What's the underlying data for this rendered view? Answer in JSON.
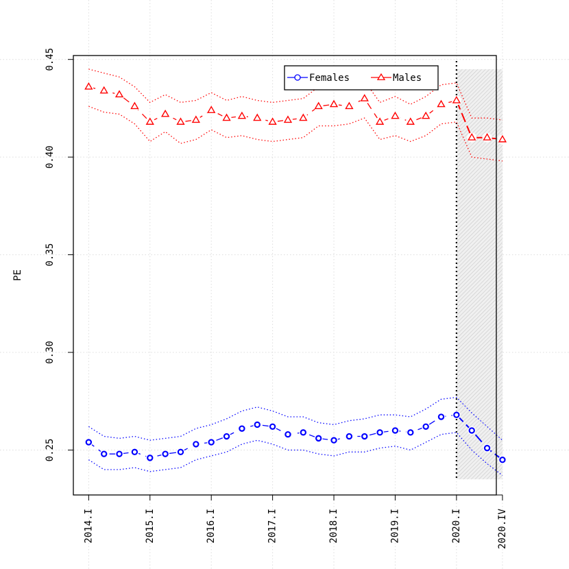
{
  "chart_data": {
    "type": "line",
    "title": "",
    "xlabel": "",
    "ylabel": "PE",
    "ylim": [
      0.227,
      0.452
    ],
    "xlim": [
      0,
      27.6
    ],
    "y_ticks": [
      "0.25",
      "0.30",
      "0.35",
      "0.40",
      "0.45"
    ],
    "y_tick_values": [
      0.25,
      0.3,
      0.35,
      0.4,
      0.45
    ],
    "x_tick_labels": [
      "2014.I",
      "2015.I",
      "2016.I",
      "2017.I",
      "2018.I",
      "2019.I",
      "2020.I",
      "2020.IV"
    ],
    "x_tick_positions": [
      1,
      5,
      9,
      13,
      17,
      21,
      25,
      28
    ],
    "grid": true,
    "legend_placement": "top-right",
    "forecast_start": 25,
    "forecast_band": {
      "x0": 25,
      "x1": 28,
      "y0": 0.235,
      "y1": 0.445
    },
    "series": [
      {
        "name": "Females",
        "color": "#0000ff",
        "marker": "circle",
        "x": [
          1,
          2,
          3,
          4,
          5,
          6,
          7,
          8,
          9,
          10,
          11,
          12,
          13,
          14,
          15,
          16,
          17,
          18,
          19,
          20,
          21,
          22,
          23,
          24,
          25,
          26,
          27,
          28
        ],
        "values": [
          0.254,
          0.248,
          0.248,
          0.249,
          0.246,
          0.248,
          0.249,
          0.253,
          0.254,
          0.257,
          0.261,
          0.263,
          0.262,
          0.258,
          0.259,
          0.256,
          0.255,
          0.257,
          0.257,
          0.259,
          0.26,
          0.259,
          0.262,
          0.267,
          0.268,
          0.26,
          0.251,
          0.245
        ],
        "upper": [
          0.262,
          0.257,
          0.256,
          0.257,
          0.255,
          0.256,
          0.257,
          0.261,
          0.263,
          0.266,
          0.27,
          0.272,
          0.27,
          0.267,
          0.267,
          0.264,
          0.263,
          0.265,
          0.266,
          0.268,
          0.268,
          0.267,
          0.271,
          0.276,
          0.277,
          0.269,
          0.262,
          0.255
        ],
        "lower": [
          0.245,
          0.24,
          0.24,
          0.241,
          0.239,
          0.24,
          0.241,
          0.245,
          0.247,
          0.249,
          0.253,
          0.255,
          0.253,
          0.25,
          0.25,
          0.248,
          0.247,
          0.249,
          0.249,
          0.251,
          0.252,
          0.25,
          0.254,
          0.258,
          0.259,
          0.25,
          0.243,
          0.237
        ]
      },
      {
        "name": "Males",
        "color": "#ff0000",
        "marker": "triangle",
        "x": [
          1,
          2,
          3,
          4,
          5,
          6,
          7,
          8,
          9,
          10,
          11,
          12,
          13,
          14,
          15,
          16,
          17,
          18,
          19,
          20,
          21,
          22,
          23,
          24,
          25,
          26,
          27,
          28
        ],
        "values": [
          0.436,
          0.434,
          0.432,
          0.426,
          0.418,
          0.422,
          0.418,
          0.419,
          0.424,
          0.42,
          0.421,
          0.42,
          0.418,
          0.419,
          0.42,
          0.426,
          0.427,
          0.426,
          0.43,
          0.418,
          0.421,
          0.418,
          0.421,
          0.427,
          0.429,
          0.41,
          0.41,
          0.409
        ],
        "upper": [
          0.445,
          0.443,
          0.441,
          0.436,
          0.428,
          0.432,
          0.428,
          0.429,
          0.433,
          0.429,
          0.431,
          0.429,
          0.428,
          0.429,
          0.43,
          0.436,
          0.436,
          0.436,
          0.439,
          0.428,
          0.431,
          0.427,
          0.431,
          0.437,
          0.438,
          0.42,
          0.42,
          0.419
        ],
        "lower": [
          0.426,
          0.423,
          0.422,
          0.417,
          0.408,
          0.413,
          0.407,
          0.409,
          0.414,
          0.41,
          0.411,
          0.409,
          0.408,
          0.409,
          0.41,
          0.416,
          0.416,
          0.417,
          0.42,
          0.409,
          0.411,
          0.408,
          0.411,
          0.417,
          0.418,
          0.4,
          0.399,
          0.398
        ]
      }
    ]
  }
}
